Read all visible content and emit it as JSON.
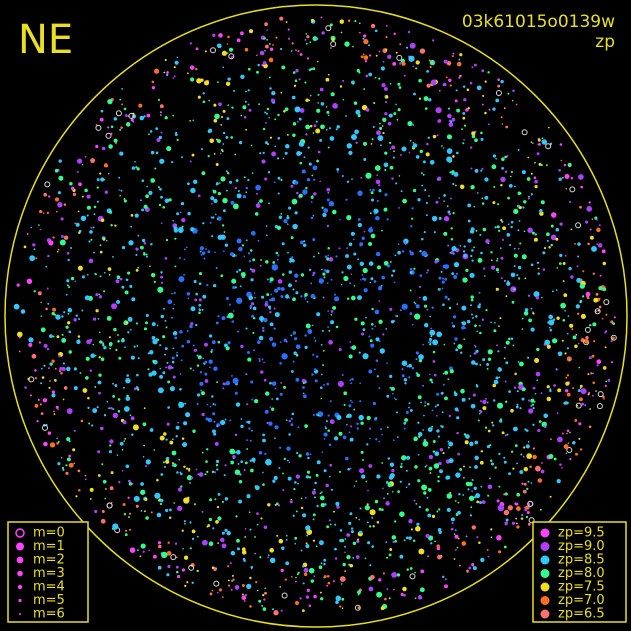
{
  "labels": {
    "direction": "NE",
    "frame": "03k61015o0139w",
    "mode": "zp"
  },
  "magnitude_legend": [
    "m=0",
    "m=1",
    "m=2",
    "m=3",
    "m=4",
    "m=5",
    "m=6"
  ],
  "zp_legend": [
    {
      "label": "zp=9.5",
      "color": "#ff44ff"
    },
    {
      "label": "zp=9.0",
      "color": "#b040ff"
    },
    {
      "label": "zp=8.5",
      "color": "#30c8ff"
    },
    {
      "label": "zp=8.0",
      "color": "#30ff90"
    },
    {
      "label": "zp=7.5",
      "color": "#f0e020"
    },
    {
      "label": "zp=7.0",
      "color": "#ff7020"
    },
    {
      "label": "zp=6.5",
      "color": "#ff7070"
    }
  ]
}
